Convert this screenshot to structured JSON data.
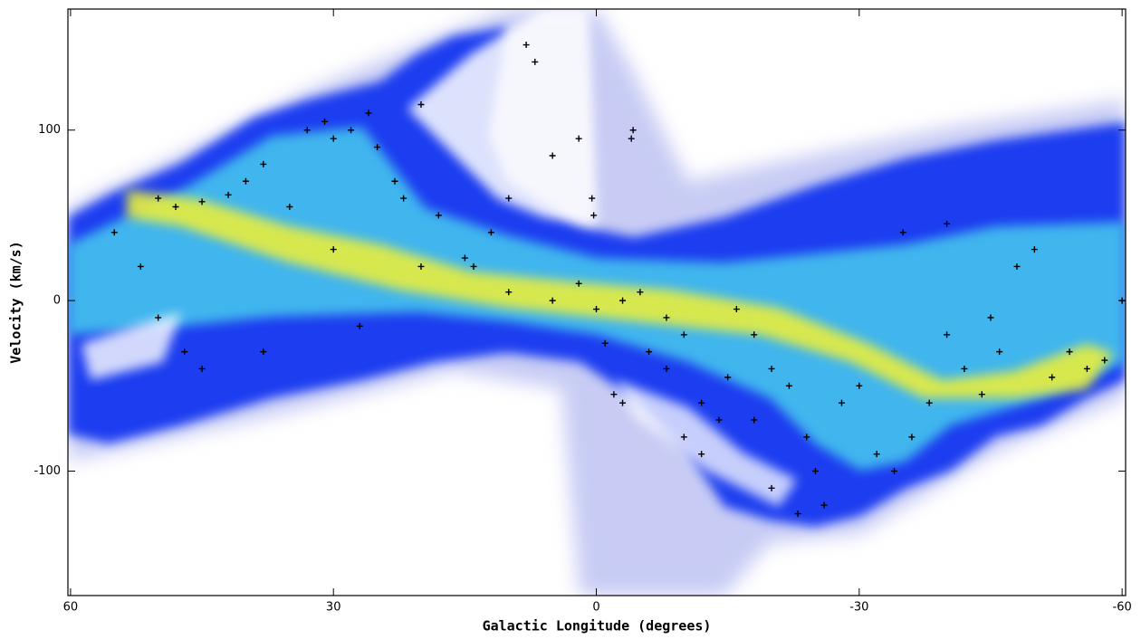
{
  "chart_data": {
    "type": "scatter",
    "x_label": "Galactic Longitude (degrees)",
    "y_label": "Velocity (km/s)",
    "xlim": [
      60.3,
      -60.4
    ],
    "ylim": [
      -173,
      171
    ],
    "xticks": [
      60,
      30,
      0,
      -30,
      -60
    ],
    "yticks": [
      -100,
      0,
      100
    ],
    "color": "#000000",
    "x": [
      50,
      48,
      45,
      42,
      40,
      38,
      35,
      33,
      31,
      30,
      28,
      26,
      25,
      23,
      22,
      20,
      18,
      15,
      14,
      12,
      10,
      8,
      7,
      5,
      2,
      0.5,
      0.3,
      -4,
      -4.2,
      55,
      52,
      50,
      47,
      45,
      38,
      30,
      27,
      20,
      10,
      5,
      2,
      0,
      -3,
      -5,
      -8,
      -10,
      -12,
      -14,
      -16,
      -18,
      -20,
      -22,
      -24,
      -25,
      -26,
      -28,
      -30,
      -32,
      -34,
      -36,
      -38,
      -40,
      -42,
      -44,
      -46,
      -48,
      -50,
      -52,
      -54,
      -56,
      -58,
      -60,
      -35,
      -40,
      -45,
      -2,
      -3,
      -8,
      -15,
      -18,
      -20,
      -23,
      -10,
      -12,
      -6,
      -1
    ],
    "y": [
      60,
      55,
      58,
      62,
      70,
      80,
      55,
      100,
      105,
      95,
      100,
      110,
      90,
      70,
      60,
      115,
      50,
      25,
      20,
      40,
      60,
      150,
      140,
      85,
      95,
      60,
      50,
      95,
      100,
      40,
      20,
      -10,
      -30,
      -40,
      -30,
      30,
      -15,
      20,
      5,
      0,
      10,
      -5,
      0,
      5,
      -10,
      -20,
      -60,
      -70,
      -5,
      -20,
      -40,
      -50,
      -80,
      -100,
      -120,
      -60,
      -50,
      -90,
      -100,
      -80,
      -60,
      -20,
      -40,
      -55,
      -30,
      20,
      30,
      -45,
      -30,
      -40,
      -35,
      0,
      40,
      45,
      -10,
      -55,
      -60,
      -40,
      -45,
      -70,
      -110,
      -125,
      -80,
      -90,
      -30,
      -25
    ]
  }
}
